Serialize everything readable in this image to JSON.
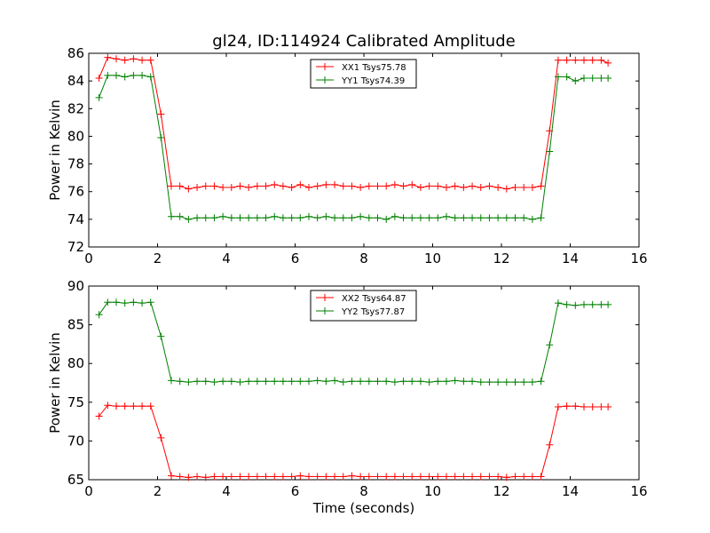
{
  "title": "gl24, ID:114924 Calibrated Amplitude",
  "chart_data": [
    {
      "type": "line",
      "ylabel": "Power in Kelvin",
      "xlabel": "",
      "xlim": [
        0,
        16
      ],
      "ylim": [
        72,
        86
      ],
      "xticks": [
        0,
        2,
        4,
        6,
        8,
        10,
        12,
        14,
        16
      ],
      "yticks": [
        72,
        74,
        76,
        78,
        80,
        82,
        84,
        86
      ],
      "legend_position": "top-center",
      "x": [
        0.3,
        0.55,
        0.8,
        1.05,
        1.3,
        1.55,
        1.8,
        2.1,
        2.4,
        2.65,
        2.9,
        3.15,
        3.4,
        3.65,
        3.9,
        4.15,
        4.4,
        4.65,
        4.9,
        5.15,
        5.4,
        5.65,
        5.9,
        6.15,
        6.4,
        6.65,
        6.9,
        7.15,
        7.4,
        7.65,
        7.9,
        8.15,
        8.4,
        8.65,
        8.9,
        9.15,
        9.4,
        9.65,
        9.9,
        10.15,
        10.4,
        10.65,
        10.9,
        11.15,
        11.4,
        11.65,
        11.9,
        12.15,
        12.4,
        12.65,
        12.9,
        13.15,
        13.4,
        13.65,
        13.9,
        14.15,
        14.4,
        14.65,
        14.9,
        15.1
      ],
      "series": [
        {
          "name": "XX1 Tsys75.78",
          "color": "#ff0000",
          "values": [
            84.2,
            85.7,
            85.6,
            85.5,
            85.6,
            85.5,
            85.5,
            81.6,
            76.4,
            76.4,
            76.2,
            76.3,
            76.4,
            76.4,
            76.3,
            76.3,
            76.4,
            76.3,
            76.4,
            76.4,
            76.5,
            76.4,
            76.3,
            76.5,
            76.3,
            76.4,
            76.5,
            76.5,
            76.4,
            76.4,
            76.3,
            76.4,
            76.4,
            76.4,
            76.5,
            76.4,
            76.5,
            76.3,
            76.4,
            76.4,
            76.3,
            76.4,
            76.3,
            76.4,
            76.3,
            76.4,
            76.3,
            76.2,
            76.3,
            76.3,
            76.3,
            76.4,
            80.4,
            85.5,
            85.5,
            85.5,
            85.5,
            85.5,
            85.5,
            85.3
          ]
        },
        {
          "name": "YY1 Tsys74.39",
          "color": "#008000",
          "values": [
            82.8,
            84.4,
            84.4,
            84.3,
            84.4,
            84.4,
            84.3,
            79.9,
            74.2,
            74.2,
            74.0,
            74.1,
            74.1,
            74.1,
            74.2,
            74.1,
            74.1,
            74.1,
            74.1,
            74.1,
            74.2,
            74.1,
            74.1,
            74.1,
            74.2,
            74.1,
            74.2,
            74.1,
            74.1,
            74.1,
            74.2,
            74.1,
            74.1,
            74.0,
            74.2,
            74.1,
            74.1,
            74.1,
            74.1,
            74.1,
            74.2,
            74.1,
            74.1,
            74.1,
            74.1,
            74.1,
            74.1,
            74.1,
            74.1,
            74.1,
            74.0,
            74.1,
            78.9,
            84.3,
            84.3,
            84.0,
            84.2,
            84.2,
            84.2,
            84.2
          ]
        }
      ]
    },
    {
      "type": "line",
      "ylabel": "Power in Kelvin",
      "xlabel": "Time (seconds)",
      "xlim": [
        0,
        16
      ],
      "ylim": [
        65,
        90
      ],
      "xticks": [
        0,
        2,
        4,
        6,
        8,
        10,
        12,
        14,
        16
      ],
      "yticks": [
        65,
        70,
        75,
        80,
        85,
        90
      ],
      "legend_position": "top-center",
      "x": [
        0.3,
        0.55,
        0.8,
        1.05,
        1.3,
        1.55,
        1.8,
        2.1,
        2.4,
        2.65,
        2.9,
        3.15,
        3.4,
        3.65,
        3.9,
        4.15,
        4.4,
        4.65,
        4.9,
        5.15,
        5.4,
        5.65,
        5.9,
        6.15,
        6.4,
        6.65,
        6.9,
        7.15,
        7.4,
        7.65,
        7.9,
        8.15,
        8.4,
        8.65,
        8.9,
        9.15,
        9.4,
        9.65,
        9.9,
        10.15,
        10.4,
        10.65,
        10.9,
        11.15,
        11.4,
        11.65,
        11.9,
        12.15,
        12.4,
        12.65,
        12.9,
        13.15,
        13.4,
        13.65,
        13.9,
        14.15,
        14.4,
        14.65,
        14.9,
        15.1
      ],
      "series": [
        {
          "name": "XX2 Tsys64.87",
          "color": "#ff0000",
          "values": [
            73.2,
            74.6,
            74.5,
            74.5,
            74.5,
            74.5,
            74.5,
            70.4,
            65.5,
            65.4,
            65.3,
            65.4,
            65.3,
            65.4,
            65.4,
            65.4,
            65.4,
            65.4,
            65.4,
            65.4,
            65.4,
            65.4,
            65.4,
            65.5,
            65.4,
            65.4,
            65.4,
            65.4,
            65.4,
            65.5,
            65.4,
            65.4,
            65.4,
            65.4,
            65.4,
            65.4,
            65.4,
            65.4,
            65.4,
            65.4,
            65.4,
            65.4,
            65.4,
            65.4,
            65.4,
            65.4,
            65.4,
            65.3,
            65.4,
            65.4,
            65.4,
            65.4,
            69.5,
            74.4,
            74.5,
            74.5,
            74.4,
            74.4,
            74.4,
            74.4
          ]
        },
        {
          "name": "YY2 Tsys77.87",
          "color": "#008000",
          "values": [
            86.3,
            87.9,
            87.9,
            87.8,
            87.9,
            87.8,
            87.9,
            83.5,
            77.8,
            77.7,
            77.6,
            77.7,
            77.7,
            77.6,
            77.7,
            77.7,
            77.6,
            77.7,
            77.7,
            77.7,
            77.7,
            77.7,
            77.7,
            77.7,
            77.7,
            77.8,
            77.7,
            77.8,
            77.6,
            77.7,
            77.7,
            77.7,
            77.7,
            77.7,
            77.6,
            77.7,
            77.7,
            77.7,
            77.6,
            77.7,
            77.7,
            77.8,
            77.7,
            77.7,
            77.6,
            77.6,
            77.6,
            77.6,
            77.6,
            77.6,
            77.6,
            77.7,
            82.4,
            87.8,
            87.6,
            87.5,
            87.6,
            87.6,
            87.6,
            87.6
          ]
        }
      ]
    }
  ]
}
